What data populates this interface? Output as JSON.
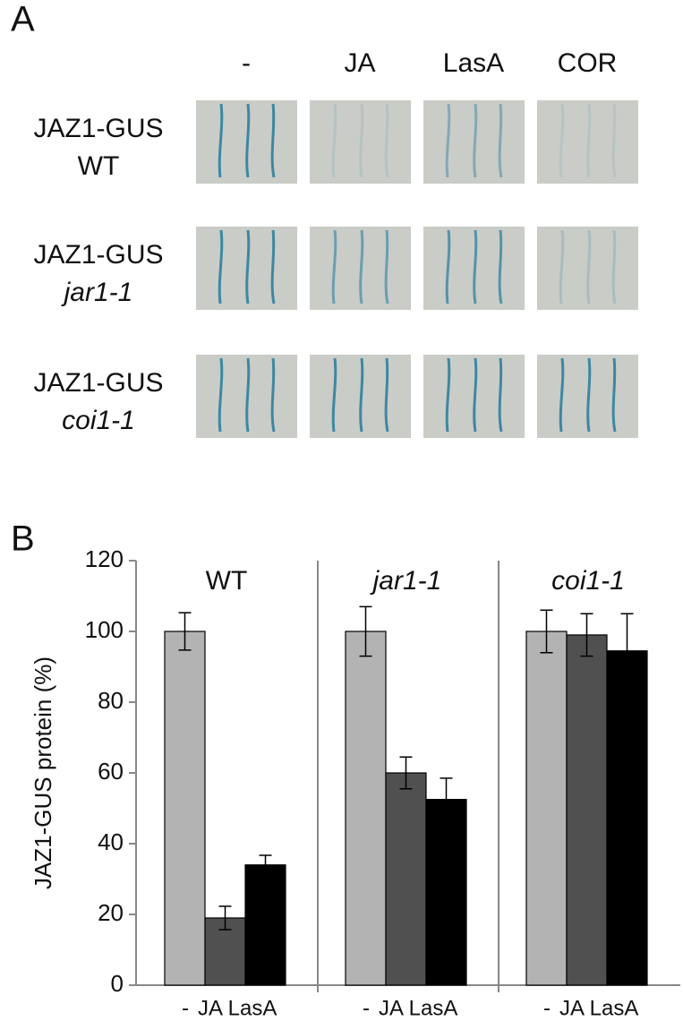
{
  "panel_a": {
    "label": "A",
    "columns": [
      "-",
      "JA",
      "LasA",
      "COR"
    ],
    "rows": [
      [
        "JAZ1-GUS",
        "WT"
      ],
      [
        "JAZ1-GUS",
        "jar1-1"
      ],
      [
        "JAZ1-GUS",
        "coi1-1"
      ]
    ]
  },
  "chart_data": {
    "type": "bar",
    "label": "B",
    "ylabel": "JAZ1-GUS protein (%)",
    "groups": [
      "WT",
      "jar1-1",
      "coi1-1"
    ],
    "series": [
      {
        "name": "-",
        "color": "#b3b3b3",
        "values": [
          100,
          100,
          100
        ],
        "errors": [
          5.3,
          7,
          6
        ]
      },
      {
        "name": "JA",
        "color": "#505050",
        "values": [
          19,
          60,
          99
        ],
        "errors": [
          3.3,
          4.5,
          6
        ]
      },
      {
        "name": "LasA",
        "color": "#000000",
        "values": [
          34,
          52.5,
          94.5
        ],
        "errors": [
          2.7,
          6,
          10.5
        ]
      }
    ],
    "ylim": [
      0,
      120
    ],
    "yticks": [
      0,
      20,
      40,
      60,
      80,
      100,
      120
    ]
  }
}
